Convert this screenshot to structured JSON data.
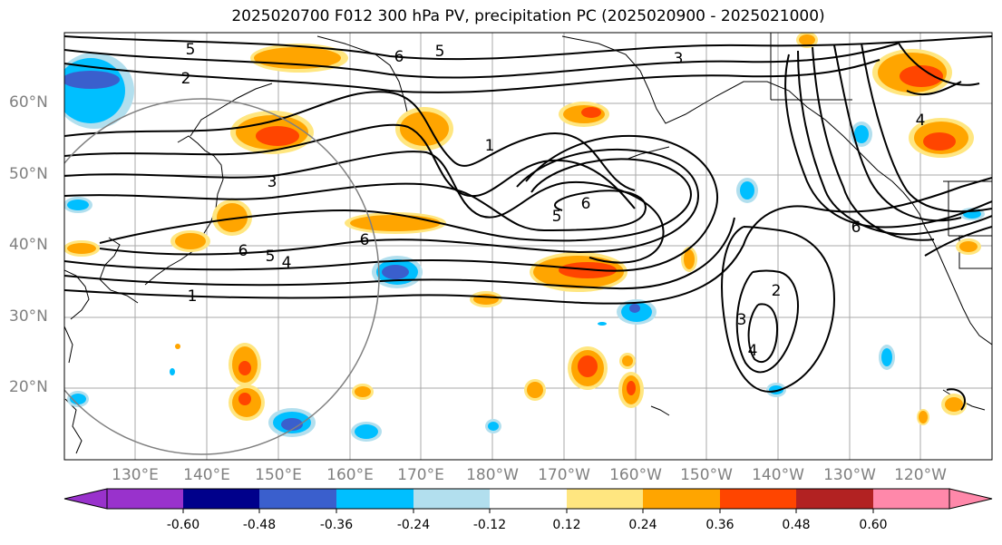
{
  "title": "2025020700 F012 300 hPa PV, precipitation PC (2025020900 - 2025021000)",
  "lat_labels": [
    "60°N",
    "50°N",
    "40°N",
    "30°N",
    "20°N"
  ],
  "lon_labels": [
    "130°E",
    "140°E",
    "150°E",
    "160°E",
    "170°E",
    "180°W",
    "170°W",
    "160°W",
    "150°W",
    "140°W",
    "130°W",
    "120°W"
  ],
  "contour_labels": [
    "2",
    "5",
    "6",
    "5",
    "3",
    "6",
    "3",
    "1",
    "6",
    "5",
    "6",
    "5",
    "4",
    "1",
    "4",
    "2",
    "3",
    "4",
    "6"
  ],
  "colorbar": {
    "tick_labels": [
      "-0.60",
      "-0.48",
      "-0.36",
      "-0.24",
      "-0.12",
      "0.12",
      "0.24",
      "0.36",
      "0.48",
      "0.60"
    ],
    "colors": [
      "#9932cc",
      "#00008b",
      "#3a5fcd",
      "#00bfff",
      "#b2dfee",
      "#ffffff",
      "#ffe680",
      "#ffa500",
      "#ff4500",
      "#b22222",
      "#ff88aa"
    ]
  }
}
